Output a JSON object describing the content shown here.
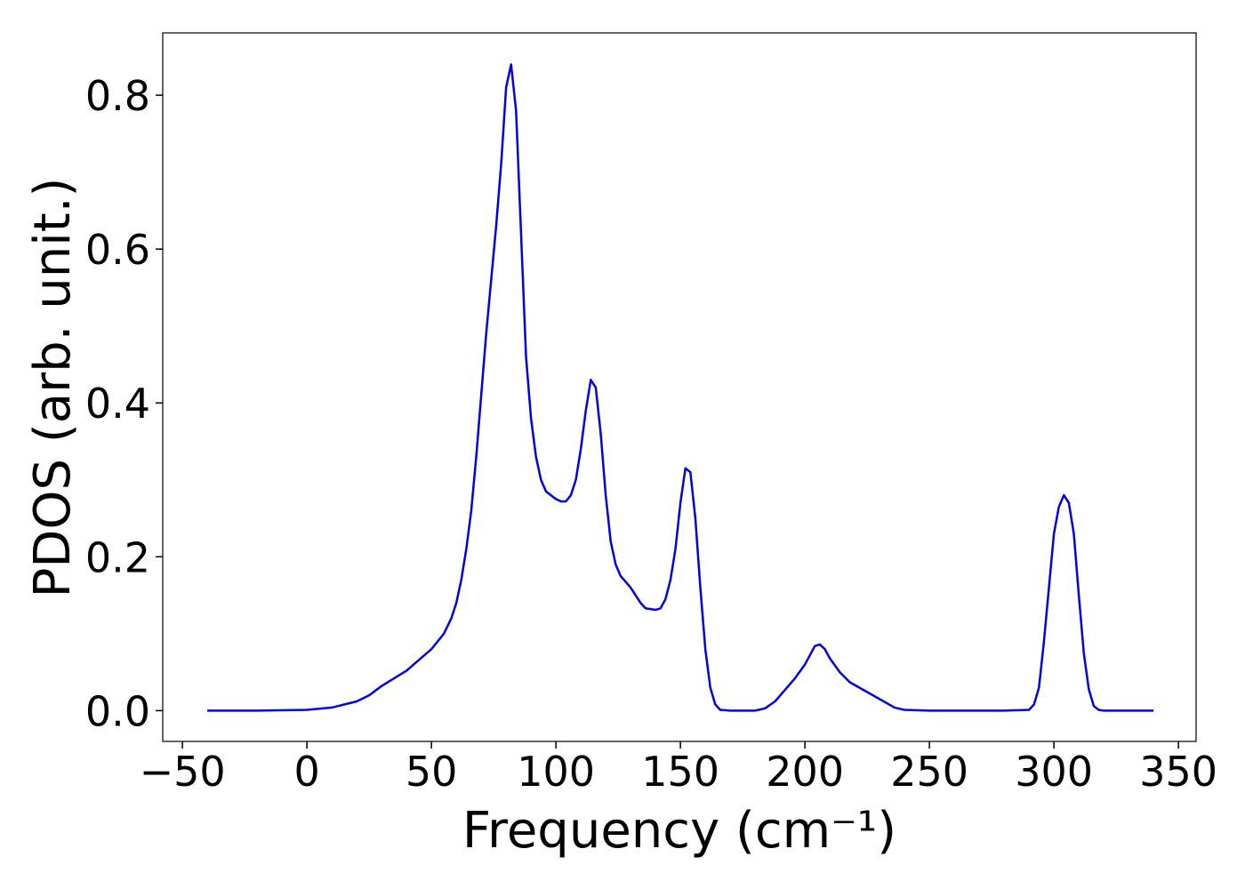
{
  "chart_data": {
    "type": "line",
    "xlabel": "Frequency (cm⁻¹)",
    "ylabel": "PDOS (arb. unit.)",
    "xlim": [
      -57.9,
      357.1
    ],
    "ylim": [
      -0.04,
      0.881
    ],
    "xticks": [
      {
        "value": -50,
        "label": "−50"
      },
      0,
      50,
      100,
      150,
      200,
      250,
      300,
      350
    ],
    "yticks": [
      {
        "value": 0,
        "label": "0.0"
      },
      0.2,
      0.4,
      0.6,
      0.8
    ],
    "series": [
      {
        "color": "#0000ee",
        "x": [
          -40,
          -20,
          0,
          10,
          20,
          25,
          30,
          40,
          50,
          55,
          58,
          60,
          62,
          64,
          66,
          68,
          70,
          72,
          74,
          76,
          78,
          80,
          82,
          84,
          86,
          88,
          90,
          92,
          94,
          96,
          100,
          102,
          104,
          106,
          108,
          110,
          112,
          114,
          116,
          118,
          120,
          122,
          124,
          126,
          130,
          134,
          136,
          140,
          142,
          144,
          146,
          148,
          150,
          152,
          154,
          156,
          158,
          160,
          162,
          164,
          166,
          170,
          180,
          184,
          188,
          192,
          196,
          200,
          204,
          206,
          208,
          210,
          214,
          218,
          224,
          230,
          236,
          240,
          250,
          280,
          290,
          292,
          294,
          296,
          298,
          300,
          302,
          304,
          306,
          308,
          310,
          312,
          314,
          316,
          318,
          320,
          340
        ],
        "values": [
          0,
          0,
          0.001,
          0.004,
          0.012,
          0.02,
          0.032,
          0.052,
          0.08,
          0.1,
          0.12,
          0.14,
          0.17,
          0.21,
          0.26,
          0.33,
          0.41,
          0.49,
          0.56,
          0.63,
          0.71,
          0.81,
          0.84,
          0.78,
          0.62,
          0.46,
          0.38,
          0.33,
          0.3,
          0.285,
          0.275,
          0.272,
          0.272,
          0.28,
          0.3,
          0.34,
          0.39,
          0.43,
          0.42,
          0.36,
          0.28,
          0.22,
          0.19,
          0.175,
          0.16,
          0.14,
          0.133,
          0.131,
          0.133,
          0.145,
          0.17,
          0.21,
          0.27,
          0.315,
          0.31,
          0.25,
          0.16,
          0.08,
          0.03,
          0.008,
          0.001,
          0,
          0,
          0.003,
          0.012,
          0.027,
          0.042,
          0.06,
          0.084,
          0.086,
          0.08,
          0.068,
          0.05,
          0.037,
          0.026,
          0.015,
          0.004,
          0.001,
          0,
          0,
          0.001,
          0.008,
          0.03,
          0.09,
          0.16,
          0.23,
          0.265,
          0.28,
          0.27,
          0.23,
          0.15,
          0.075,
          0.028,
          0.006,
          0.001,
          0,
          0
        ]
      }
    ]
  }
}
